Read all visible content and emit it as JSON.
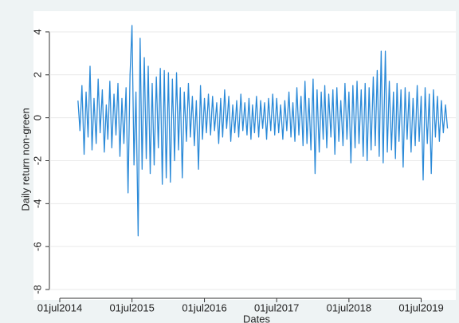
{
  "chart_data": {
    "type": "line",
    "y_label": "Daily return non-green",
    "x_label": "Dates",
    "color": "#2b8ad8",
    "grid": true,
    "xlim": [
      "2014-07-01",
      "2019-12-15"
    ],
    "ylim": [
      -8.4,
      4.5
    ],
    "yticks": [
      4,
      2,
      0,
      -2,
      -4,
      -6,
      -8
    ],
    "xticks": [
      {
        "value": "2014-07-01",
        "label": "01jul2014"
      },
      {
        "value": "2015-07-01",
        "label": "01jul2015"
      },
      {
        "value": "2016-07-01",
        "label": "01jul2016"
      },
      {
        "value": "2017-07-01",
        "label": "01jul2017"
      },
      {
        "value": "2018-07-01",
        "label": "01jul2018"
      },
      {
        "value": "2019-07-01",
        "label": "01jul2019"
      }
    ],
    "x": [
      "2014-10-01",
      "2014-10-11",
      "2014-10-21",
      "2014-11-01",
      "2014-11-11",
      "2014-11-21",
      "2014-12-01",
      "2014-12-11",
      "2014-12-21",
      "2015-01-01",
      "2015-01-11",
      "2015-01-21",
      "2015-02-01",
      "2015-02-11",
      "2015-02-21",
      "2015-03-01",
      "2015-03-11",
      "2015-03-21",
      "2015-04-01",
      "2015-04-11",
      "2015-04-21",
      "2015-05-01",
      "2015-05-11",
      "2015-05-21",
      "2015-06-01",
      "2015-06-11",
      "2015-06-21",
      "2015-07-01",
      "2015-07-11",
      "2015-07-21",
      "2015-08-01",
      "2015-08-11",
      "2015-08-21",
      "2015-09-01",
      "2015-09-11",
      "2015-09-21",
      "2015-10-01",
      "2015-10-11",
      "2015-10-21",
      "2015-11-01",
      "2015-11-11",
      "2015-11-21",
      "2015-12-01",
      "2015-12-11",
      "2015-12-21",
      "2016-01-01",
      "2016-01-11",
      "2016-01-21",
      "2016-02-01",
      "2016-02-11",
      "2016-02-21",
      "2016-03-01",
      "2016-03-11",
      "2016-03-21",
      "2016-04-01",
      "2016-04-11",
      "2016-04-21",
      "2016-05-01",
      "2016-05-11",
      "2016-05-21",
      "2016-06-01",
      "2016-06-11",
      "2016-06-21",
      "2016-07-01",
      "2016-07-11",
      "2016-07-21",
      "2016-08-01",
      "2016-08-11",
      "2016-08-21",
      "2016-09-01",
      "2016-09-11",
      "2016-09-21",
      "2016-10-01",
      "2016-10-11",
      "2016-10-21",
      "2016-11-01",
      "2016-11-11",
      "2016-11-21",
      "2016-12-01",
      "2016-12-11",
      "2016-12-21",
      "2017-01-01",
      "2017-01-11",
      "2017-01-21",
      "2017-02-01",
      "2017-02-11",
      "2017-02-21",
      "2017-03-01",
      "2017-03-11",
      "2017-03-21",
      "2017-04-01",
      "2017-04-11",
      "2017-04-21",
      "2017-05-01",
      "2017-05-11",
      "2017-05-21",
      "2017-06-01",
      "2017-06-11",
      "2017-06-21",
      "2017-07-01",
      "2017-07-11",
      "2017-07-21",
      "2017-08-01",
      "2017-08-11",
      "2017-08-21",
      "2017-09-01",
      "2017-09-11",
      "2017-09-21",
      "2017-10-01",
      "2017-10-11",
      "2017-10-21",
      "2017-11-01",
      "2017-11-11",
      "2017-11-21",
      "2017-12-01",
      "2017-12-11",
      "2017-12-21",
      "2018-01-01",
      "2018-01-11",
      "2018-01-21",
      "2018-02-01",
      "2018-02-11",
      "2018-02-21",
      "2018-03-01",
      "2018-03-11",
      "2018-03-21",
      "2018-04-01",
      "2018-04-11",
      "2018-04-21",
      "2018-05-01",
      "2018-05-11",
      "2018-05-21",
      "2018-06-01",
      "2018-06-11",
      "2018-06-21",
      "2018-07-01",
      "2018-07-11",
      "2018-07-21",
      "2018-08-01",
      "2018-08-11",
      "2018-08-21",
      "2018-09-01",
      "2018-09-11",
      "2018-09-21",
      "2018-10-01",
      "2018-10-11",
      "2018-10-21",
      "2018-11-01",
      "2018-11-11",
      "2018-11-21",
      "2018-12-01",
      "2018-12-11",
      "2018-12-21",
      "2019-01-01",
      "2019-01-11",
      "2019-01-21",
      "2019-02-01",
      "2019-02-11",
      "2019-02-21",
      "2019-03-01",
      "2019-03-11",
      "2019-03-21",
      "2019-04-01",
      "2019-04-11",
      "2019-04-21",
      "2019-05-01",
      "2019-05-11",
      "2019-05-21",
      "2019-06-01",
      "2019-06-11",
      "2019-06-21",
      "2019-07-01",
      "2019-07-11",
      "2019-07-21",
      "2019-08-01",
      "2019-08-11",
      "2019-08-21",
      "2019-09-01",
      "2019-09-11",
      "2019-09-21",
      "2019-10-01",
      "2019-10-11",
      "2019-10-21",
      "2019-11-01",
      "2019-11-11"
    ],
    "values": [
      0.8,
      -0.6,
      1.5,
      -1.7,
      1.2,
      -0.9,
      2.4,
      -1.5,
      0.9,
      -1.2,
      1.8,
      -0.7,
      1.3,
      -1.6,
      0.6,
      -1.0,
      1.7,
      -1.4,
      1.1,
      -0.8,
      1.6,
      -1.8,
      0.9,
      -1.2,
      1.4,
      -3.5,
      2.0,
      4.3,
      -2.2,
      1.2,
      -5.5,
      3.7,
      -2.4,
      2.8,
      -1.9,
      2.4,
      -2.6,
      1.6,
      -2.2,
      1.9,
      -1.4,
      2.3,
      -3.1,
      2.2,
      -2.8,
      2.1,
      -3.0,
      1.8,
      -2.0,
      2.1,
      -1.5,
      1.4,
      -2.8,
      1.2,
      -1.1,
      1.6,
      -0.9,
      1.0,
      -1.3,
      0.8,
      -2.4,
      1.5,
      -1.0,
      0.9,
      -0.7,
      1.1,
      -0.8,
      1.0,
      -0.6,
      0.7,
      -1.2,
      0.9,
      -0.9,
      1.3,
      -0.5,
      1.0,
      -1.1,
      0.6,
      -0.7,
      0.8,
      -0.9,
      1.1,
      -0.6,
      0.7,
      -0.8,
      0.9,
      -1.0,
      0.6,
      -0.7,
      1.0,
      -0.9,
      0.8,
      -0.5,
      0.7,
      -1.0,
      0.9,
      -0.6,
      1.1,
      -0.8,
      0.9,
      -0.7,
      0.6,
      -1.0,
      0.8,
      -0.6,
      1.2,
      -0.9,
      0.7,
      -1.1,
      1.4,
      -0.8,
      1.0,
      -1.3,
      1.7,
      -1.2,
      0.9,
      -1.5,
      1.8,
      -2.6,
      1.3,
      -1.6,
      1.2,
      -1.0,
      1.5,
      -1.4,
      1.1,
      -0.9,
      1.3,
      -1.7,
      1.4,
      -1.1,
      0.8,
      -1.3,
      1.6,
      -1.0,
      1.2,
      -2.1,
      1.5,
      -1.4,
      1.7,
      -1.2,
      1.3,
      -1.8,
      1.6,
      -2.0,
      1.4,
      -1.5,
      1.9,
      -1.3,
      2.2,
      -1.8,
      3.1,
      -2.1,
      3.1,
      -1.6,
      1.7,
      -1.5,
      1.2,
      -1.9,
      1.6,
      -1.1,
      1.3,
      -2.3,
      1.4,
      -1.0,
      1.2,
      -1.6,
      0.9,
      -1.3,
      1.5,
      -1.1,
      1.0,
      -2.9,
      1.4,
      -1.2,
      1.1,
      -2.6,
      1.3,
      -0.9,
      1.0,
      -1.1,
      0.8,
      -0.7,
      0.6,
      -0.5
    ]
  }
}
